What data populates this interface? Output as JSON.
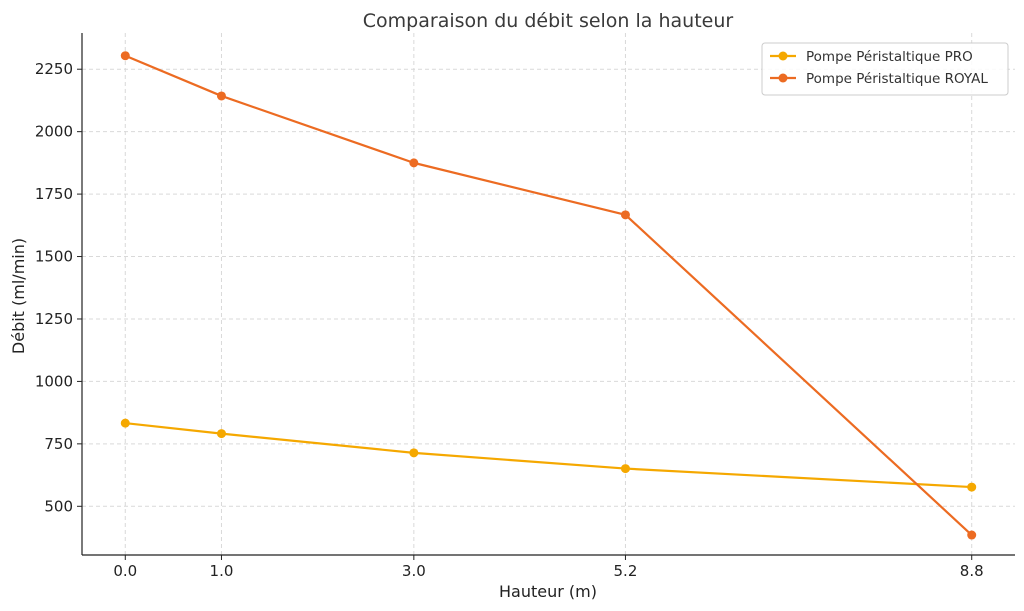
{
  "chart_data": {
    "type": "line",
    "title": "Comparaison du débit selon la hauteur",
    "xlabel": "Hauteur (m)",
    "ylabel": "Débit (ml/min)",
    "x": [
      0.0,
      1.0,
      3.0,
      5.2,
      8.8
    ],
    "x_tick_labels": [
      "0.0",
      "1.0",
      "3.0",
      "5.2",
      "8.8"
    ],
    "xlim": [
      -0.45,
      9.25
    ],
    "ylim": [
      305,
      2395
    ],
    "y_ticks": [
      500,
      750,
      1000,
      1250,
      1500,
      1750,
      2000,
      2250
    ],
    "y_tick_labels": [
      "500",
      "750",
      "1000",
      "1250",
      "1500",
      "1750",
      "2000",
      "2250"
    ],
    "grid": true,
    "legend_position": "top-right",
    "series": [
      {
        "name": "Pompe Péristaltique PRO",
        "color": "#f5a800",
        "values": [
          833,
          791,
          714,
          651,
          577
        ]
      },
      {
        "name": "Pompe Péristaltique ROYAL",
        "color": "#ec6b22",
        "values": [
          2304,
          2143,
          1875,
          1667,
          385
        ]
      }
    ]
  }
}
